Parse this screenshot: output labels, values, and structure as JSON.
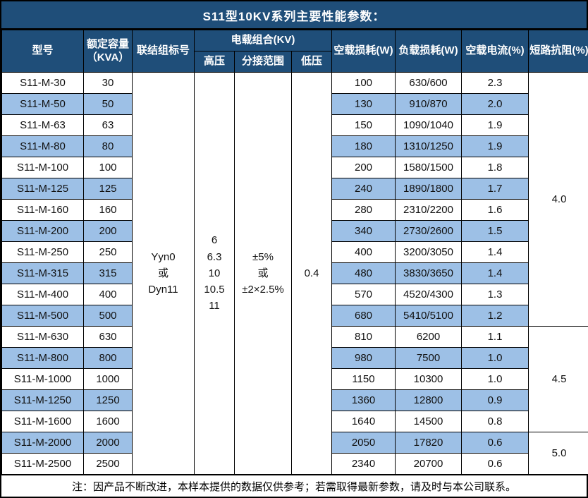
{
  "title": "S11型10KV系列主要性能参数：",
  "colors": {
    "header_bg": "#1F4E79",
    "alt_row_bg": "#9DC0E6",
    "border": "#000000",
    "header_text": "#FFFFFF",
    "body_text": "#111111"
  },
  "table": {
    "headers": {
      "model": "型号",
      "capacity_line1": "额定容量",
      "capacity_line2": "（KVA）",
      "connection": "联结组标号",
      "voltage_combo": "电载组合(KV)",
      "hv": "高压",
      "tap": "分接范围",
      "lv": "低压",
      "no_load_loss": "空载损耗(W)",
      "load_loss": "负载损耗(W)",
      "no_load_current": "空载电流(%)",
      "impedance": "短路抗阻(%)"
    },
    "merged": {
      "connection_lines": [
        "Yyn0",
        "或",
        "Dyn11"
      ],
      "hv_lines": [
        "6",
        "6.3",
        "10",
        "10.5",
        "11"
      ],
      "tap_lines": [
        "±5%",
        "或",
        "±2×2.5%"
      ],
      "lv_lines": [
        "0.4"
      ]
    },
    "impedance_groups": [
      {
        "value": "4.0",
        "span": 12
      },
      {
        "value": "4.5",
        "span": 5
      },
      {
        "value": "5.0",
        "span": 2
      }
    ],
    "rows": [
      [
        "S11-M-30",
        "30",
        "100",
        "630/600",
        "2.3"
      ],
      [
        "S11-M-50",
        "50",
        "130",
        "910/870",
        "2.0"
      ],
      [
        "S11-M-63",
        "63",
        "150",
        "1090/1040",
        "1.9"
      ],
      [
        "S11-M-80",
        "80",
        "180",
        "1310/1250",
        "1.9"
      ],
      [
        "S11-M-100",
        "100",
        "200",
        "1580/1500",
        "1.8"
      ],
      [
        "S11-M-125",
        "125",
        "240",
        "1890/1800",
        "1.7"
      ],
      [
        "S11-M-160",
        "160",
        "280",
        "2310/2200",
        "1.6"
      ],
      [
        "S11-M-200",
        "200",
        "340",
        "2730/2600",
        "1.5"
      ],
      [
        "S11-M-250",
        "250",
        "400",
        "3200/3050",
        "1.4"
      ],
      [
        "S11-M-315",
        "315",
        "480",
        "3830/3650",
        "1.4"
      ],
      [
        "S11-M-400",
        "400",
        "570",
        "4520/4300",
        "1.3"
      ],
      [
        "S11-M-500",
        "500",
        "680",
        "5410/5100",
        "1.2"
      ],
      [
        "S11-M-630",
        "630",
        "810",
        "6200",
        "1.1"
      ],
      [
        "S11-M-800",
        "800",
        "980",
        "7500",
        "1.0"
      ],
      [
        "S11-M-1000",
        "1000",
        "1150",
        "10300",
        "1.0"
      ],
      [
        "S11-M-1250",
        "1250",
        "1360",
        "12800",
        "0.9"
      ],
      [
        "S11-M-1600",
        "1600",
        "1640",
        "14500",
        "0.8"
      ],
      [
        "S11-M-2000",
        "2000",
        "2050",
        "17820",
        "0.6"
      ],
      [
        "S11-M-2500",
        "2500",
        "2340",
        "20700",
        "0.6"
      ]
    ]
  },
  "footer_note": "注：因产品不断改进，本样本提供的数据仅供参考；若需取得最新参数，请及时与本公司联系。"
}
